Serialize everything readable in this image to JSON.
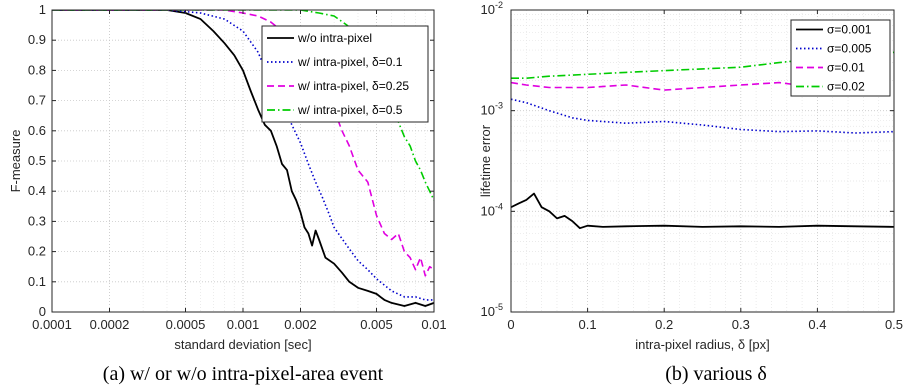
{
  "chart_data": [
    {
      "type": "line",
      "caption": "(a) w/ or w/o intra-pixel-area event",
      "xlabel": "standard deviation [sec]",
      "ylabel": "F-measure",
      "xscale": "log",
      "xlim": [
        0.0001,
        0.01
      ],
      "ylim": [
        0,
        1
      ],
      "xticks": [
        0.0001,
        0.0002,
        0.0005,
        0.001,
        0.002,
        0.005,
        0.01
      ],
      "xtick_labels": [
        "0.0001",
        "0.0002",
        "0.0005",
        "0.001",
        "0.002",
        "0.005",
        "0.01"
      ],
      "yticks": [
        0,
        0.1,
        0.2,
        0.3,
        0.4,
        0.5,
        0.6,
        0.7,
        0.8,
        0.9,
        1
      ],
      "ytick_labels": [
        "0",
        "0.1",
        "0.2",
        "0.3",
        "0.4",
        "0.5",
        "0.6",
        "0.7",
        "0.8",
        "0.9",
        "1"
      ],
      "grid": true,
      "legend_position": "top-right",
      "series": [
        {
          "name": "w/o intra-pixel",
          "color": "#000000",
          "dash": "solid",
          "x": [
            0.0001,
            0.0002,
            0.0003,
            0.0004,
            0.0005,
            0.0006,
            0.0007,
            0.0008,
            0.0009,
            0.001,
            0.0011,
            0.0012,
            0.0013,
            0.0014,
            0.0015,
            0.0016,
            0.0017,
            0.0018,
            0.0019,
            0.002,
            0.0021,
            0.0022,
            0.0023,
            0.0024,
            0.0025,
            0.0027,
            0.003,
            0.0033,
            0.0036,
            0.004,
            0.0045,
            0.005,
            0.0055,
            0.006,
            0.007,
            0.008,
            0.009,
            0.01
          ],
          "y": [
            1,
            1,
            1,
            1,
            0.99,
            0.97,
            0.93,
            0.89,
            0.85,
            0.8,
            0.73,
            0.67,
            0.62,
            0.6,
            0.55,
            0.49,
            0.47,
            0.4,
            0.37,
            0.33,
            0.28,
            0.26,
            0.22,
            0.27,
            0.24,
            0.18,
            0.16,
            0.13,
            0.1,
            0.08,
            0.07,
            0.06,
            0.04,
            0.03,
            0.02,
            0.03,
            0.02,
            0.03
          ]
        },
        {
          "name": "w/ intra-pixel, δ=0.1",
          "color": "#0000cc",
          "dash": "dotted",
          "x": [
            0.0001,
            0.0004,
            0.0006,
            0.0008,
            0.001,
            0.0012,
            0.0014,
            0.0016,
            0.0018,
            0.002,
            0.0022,
            0.0024,
            0.0026,
            0.0028,
            0.003,
            0.0035,
            0.004,
            0.0045,
            0.005,
            0.006,
            0.007,
            0.008,
            0.009,
            0.01
          ],
          "y": [
            1,
            1,
            0.99,
            0.97,
            0.93,
            0.86,
            0.76,
            0.7,
            0.62,
            0.56,
            0.49,
            0.43,
            0.38,
            0.33,
            0.28,
            0.22,
            0.17,
            0.14,
            0.11,
            0.07,
            0.05,
            0.05,
            0.04,
            0.04
          ]
        },
        {
          "name": "w/ intra-pixel, δ=0.25",
          "color": "#e000e0",
          "dash": "dashed",
          "x": [
            0.0001,
            0.0008,
            0.001,
            0.0012,
            0.0014,
            0.0016,
            0.0018,
            0.002,
            0.0022,
            0.0024,
            0.0026,
            0.0028,
            0.003,
            0.0033,
            0.0036,
            0.004,
            0.0045,
            0.005,
            0.0055,
            0.006,
            0.0065,
            0.007,
            0.0075,
            0.008,
            0.0085,
            0.009,
            0.0095,
            0.01
          ],
          "y": [
            1,
            1,
            0.99,
            0.98,
            0.96,
            0.93,
            0.89,
            0.85,
            0.8,
            0.75,
            0.72,
            0.7,
            0.67,
            0.6,
            0.55,
            0.47,
            0.43,
            0.32,
            0.26,
            0.24,
            0.26,
            0.2,
            0.18,
            0.14,
            0.18,
            0.12,
            0.15,
            0.14
          ]
        },
        {
          "name": "w/ intra-pixel, δ=0.5",
          "color": "#00cc00",
          "dash": "dashdot",
          "x": [
            0.0001,
            0.0015,
            0.002,
            0.0025,
            0.003,
            0.0035,
            0.004,
            0.0045,
            0.005,
            0.0055,
            0.006,
            0.0065,
            0.007,
            0.0075,
            0.008,
            0.0085,
            0.009,
            0.0095,
            0.01
          ],
          "y": [
            1,
            1,
            1,
            0.99,
            0.98,
            0.95,
            0.92,
            0.88,
            0.8,
            0.75,
            0.68,
            0.63,
            0.58,
            0.55,
            0.5,
            0.47,
            0.43,
            0.4,
            0.37
          ]
        }
      ]
    },
    {
      "type": "line",
      "caption": "(b) various δ",
      "xlabel": "intra-pixel radius, δ [px]",
      "ylabel": "lifetime error",
      "yscale": "log",
      "xlim": [
        0,
        0.5
      ],
      "ylim": [
        1e-05,
        0.01
      ],
      "xticks": [
        0,
        0.1,
        0.2,
        0.3,
        0.4,
        0.5
      ],
      "xtick_labels": [
        "0",
        "0.1",
        "0.2",
        "0.3",
        "0.4",
        "0.5"
      ],
      "yticks": [
        1e-05,
        0.0001,
        0.001,
        0.01
      ],
      "ytick_base": "10",
      "ytick_exponents": [
        "-5",
        "-4",
        "-3",
        "-2"
      ],
      "grid": true,
      "legend_position": "top-right",
      "series": [
        {
          "name": "σ=0.001",
          "color": "#000000",
          "dash": "solid",
          "x": [
            0,
            0.01,
            0.02,
            0.03,
            0.04,
            0.05,
            0.06,
            0.07,
            0.08,
            0.09,
            0.1,
            0.12,
            0.15,
            0.2,
            0.25,
            0.3,
            0.35,
            0.4,
            0.45,
            0.5
          ],
          "y": [
            0.00011,
            0.00012,
            0.00013,
            0.00015,
            0.00011,
            0.0001,
            8.5e-05,
            9e-05,
            8e-05,
            6.8e-05,
            7.2e-05,
            7e-05,
            7.1e-05,
            7.2e-05,
            7e-05,
            7.1e-05,
            7e-05,
            7.2e-05,
            7.1e-05,
            7e-05
          ]
        },
        {
          "name": "σ=0.005",
          "color": "#0000cc",
          "dash": "dotted",
          "x": [
            0,
            0.02,
            0.05,
            0.08,
            0.1,
            0.15,
            0.2,
            0.25,
            0.3,
            0.35,
            0.4,
            0.45,
            0.5
          ],
          "y": [
            0.0013,
            0.0012,
            0.001,
            0.00085,
            0.0008,
            0.00075,
            0.00078,
            0.00072,
            0.00065,
            0.00062,
            0.00063,
            0.0006,
            0.00062
          ]
        },
        {
          "name": "σ=0.01",
          "color": "#e000e0",
          "dash": "dashed",
          "x": [
            0,
            0.02,
            0.05,
            0.1,
            0.15,
            0.2,
            0.25,
            0.3,
            0.35,
            0.4,
            0.45,
            0.5
          ],
          "y": [
            0.0019,
            0.0018,
            0.0017,
            0.0017,
            0.0018,
            0.0016,
            0.0017,
            0.0018,
            0.0019,
            0.0017,
            0.0018,
            0.0021
          ]
        },
        {
          "name": "σ=0.02",
          "color": "#00cc00",
          "dash": "dashdot",
          "x": [
            0,
            0.02,
            0.05,
            0.1,
            0.15,
            0.2,
            0.25,
            0.3,
            0.35,
            0.4,
            0.45,
            0.5
          ],
          "y": [
            0.0021,
            0.0021,
            0.0022,
            0.0023,
            0.0024,
            0.0025,
            0.0026,
            0.0027,
            0.003,
            0.0033,
            0.0035,
            0.0038
          ]
        }
      ]
    }
  ]
}
